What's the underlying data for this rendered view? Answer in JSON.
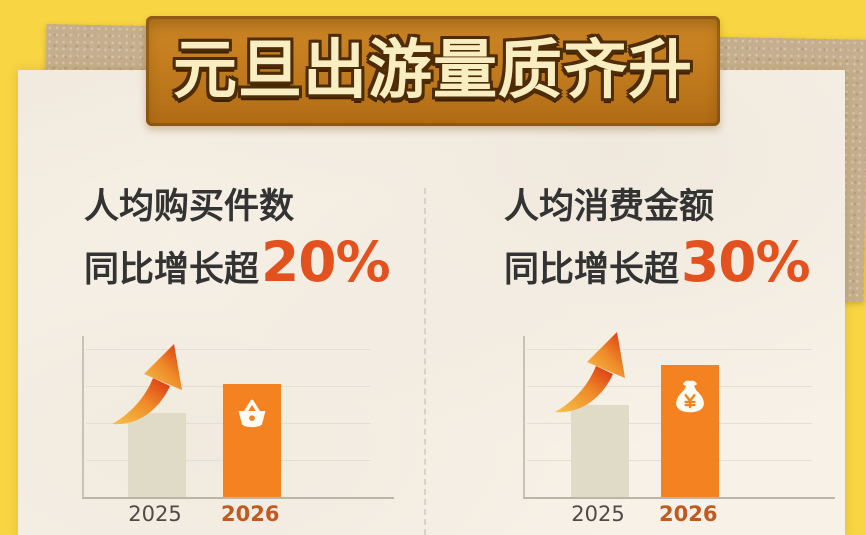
{
  "banner": {
    "title": "元旦出游量质齐升"
  },
  "sections": [
    {
      "line1": "人均购买件数",
      "line2_prefix": "同比增长超",
      "stat": "20%"
    },
    {
      "line1": "人均消费金额",
      "line2_prefix": "同比增长超",
      "stat": "30%"
    }
  ],
  "chart_data": [
    {
      "type": "bar",
      "title": "人均购买件数 同比增长超20%",
      "categories": [
        "2025",
        "2026"
      ],
      "values": [
        100,
        120
      ],
      "growth_label": "20%",
      "bar_height_pct": [
        52,
        70
      ],
      "bar_colors": [
        "#DFDBC6",
        "#F58220"
      ],
      "icon_on_2026_bar": "shopping-basket",
      "annotation": "upward-curved-arrow",
      "axis_values_shown": false,
      "grid": true,
      "legend": "none"
    },
    {
      "type": "bar",
      "title": "人均消费金额 同比增长超30%",
      "categories": [
        "2025",
        "2026"
      ],
      "values": [
        100,
        130
      ],
      "growth_label": "30%",
      "bar_height_pct": [
        57,
        82
      ],
      "bar_colors": [
        "#DFDBC6",
        "#F58220"
      ],
      "icon_on_2026_bar": "money-bag",
      "annotation": "upward-curved-arrow",
      "axis_values_shown": false,
      "grid": true,
      "legend": "none"
    }
  ],
  "colors": {
    "background": "#F8D542",
    "paper": "#F7F1E7",
    "cardboard": "#C5AE8D",
    "banner_bg": "#C07A1D",
    "banner_text": "#F9EDC2",
    "banner_outline": "#4E2D06",
    "headline_text": "#333333",
    "stat_accent": "#E2511E",
    "bar_2025": "#DFDBC6",
    "bar_2026": "#F58220",
    "label_2025": "#4F4A46",
    "label_2026": "#C05A20"
  }
}
